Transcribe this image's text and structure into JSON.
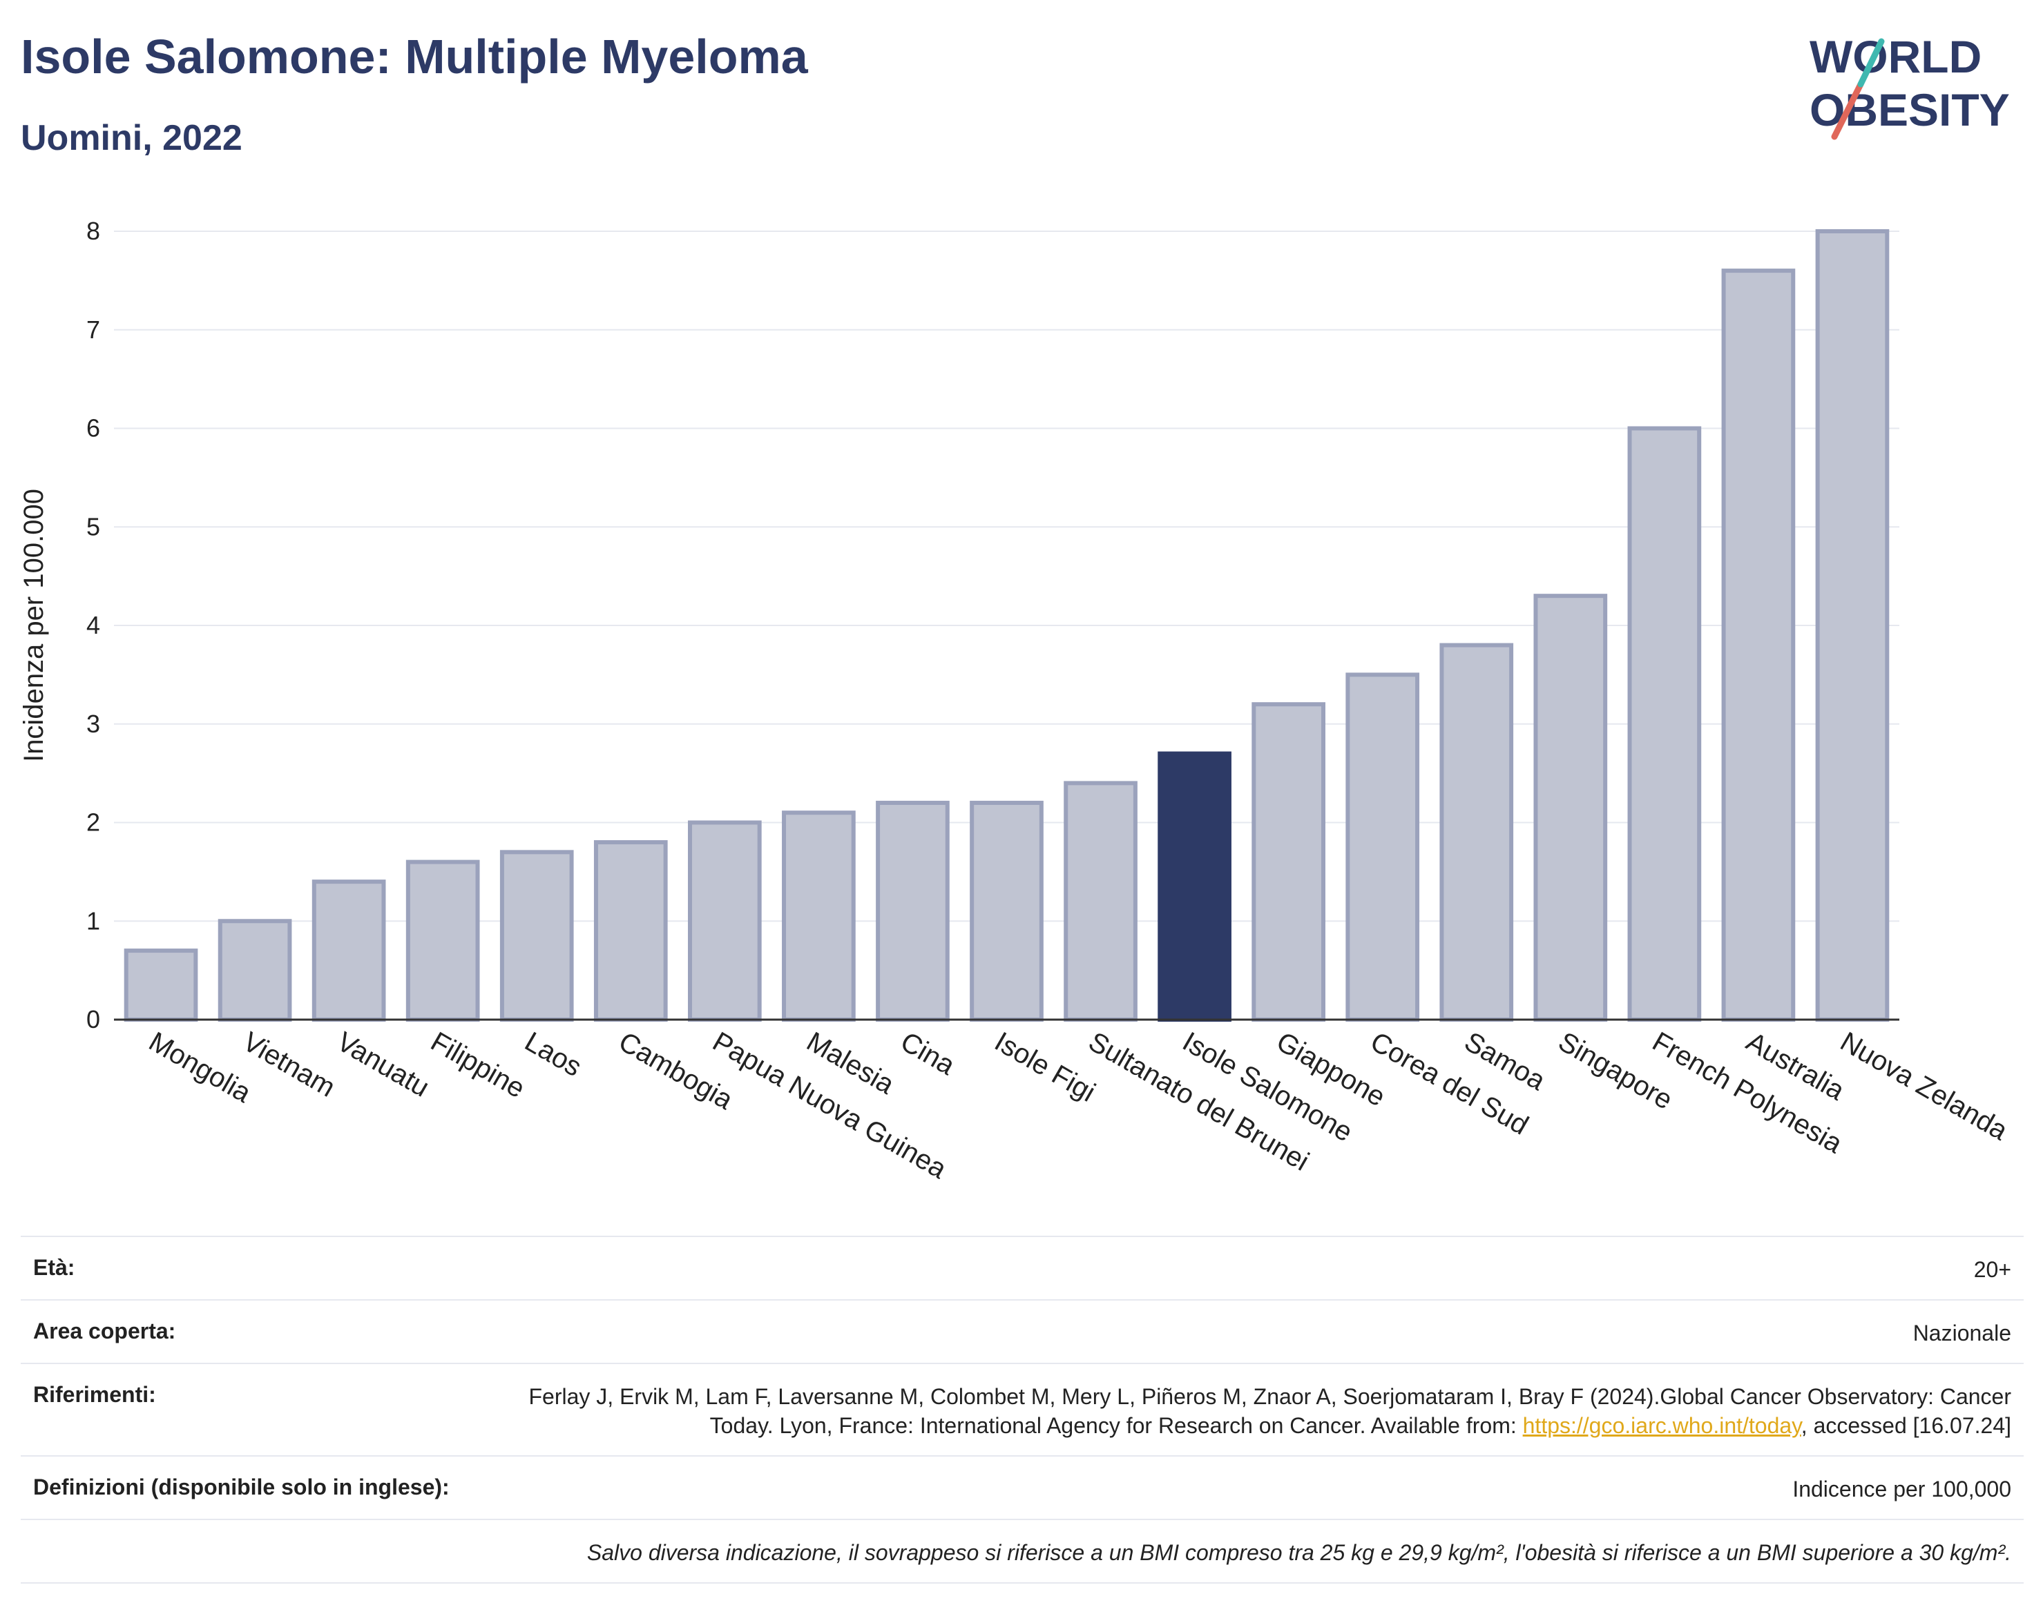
{
  "header": {
    "title": "Isole Salomone: Multiple Myeloma",
    "subtitle": "Uomini, 2022"
  },
  "logo": {
    "line1": "WORLD",
    "line2": "OBESITY"
  },
  "colors": {
    "highlight": "#2d3a66",
    "bar_fill": "#c0c4d2",
    "bar_stroke": "#9ba2bc",
    "grid": "#e6e8ef",
    "axis": "#333333"
  },
  "chart_data": {
    "type": "bar",
    "ylabel": "Incidenza per 100.000",
    "ylim": [
      0,
      8
    ],
    "yticks": [
      "0",
      "1",
      "2",
      "3",
      "4",
      "5",
      "6",
      "7",
      "8"
    ],
    "grid": true,
    "highlight": "Isole Salomone",
    "categories": [
      "Mongolia",
      "Vietnam",
      "Vanuatu",
      "Filippine",
      "Laos",
      "Cambogia",
      "Papua Nuova Guinea",
      "Malesia",
      "Cina",
      "Isole Figi",
      "Sultanato del Brunei",
      "Isole Salomone",
      "Giappone",
      "Corea del Sud",
      "Samoa",
      "Singapore",
      "French Polynesia",
      "Australia",
      "Nuova Zelanda"
    ],
    "values": [
      0.7,
      1.0,
      1.4,
      1.6,
      1.7,
      1.8,
      2.0,
      2.1,
      2.2,
      2.2,
      2.4,
      2.7,
      3.2,
      3.5,
      3.8,
      4.3,
      6.0,
      7.6,
      8.0
    ]
  },
  "info": {
    "age_label": "Età:",
    "age_value": "20+",
    "area_label": "Area coperta:",
    "area_value": "Nazionale",
    "ref_label": "Riferimenti:",
    "ref_text_1": "Ferlay J, Ervik M, Lam F, Laversanne M, Colombet M, Mery L, Piñeros M, Znaor A, Soerjomataram I, Bray F (2024).Global Cancer Observatory: Cancer Today. Lyon, France: International Agency for Research on Cancer. Available from: ",
    "ref_link": "https://gco.iarc.who.int/today",
    "ref_text_2": ", accessed [16.07.24]",
    "def_label": "Definizioni (disponibile solo in inglese):",
    "def_value": "Indicence per 100,000",
    "note": "Salvo diversa indicazione, il sovrappeso si riferisce a un BMI compreso tra 25 kg e 29,9 kg/m², l'obesità si riferisce a un BMI superiore a 30 kg/m²."
  }
}
